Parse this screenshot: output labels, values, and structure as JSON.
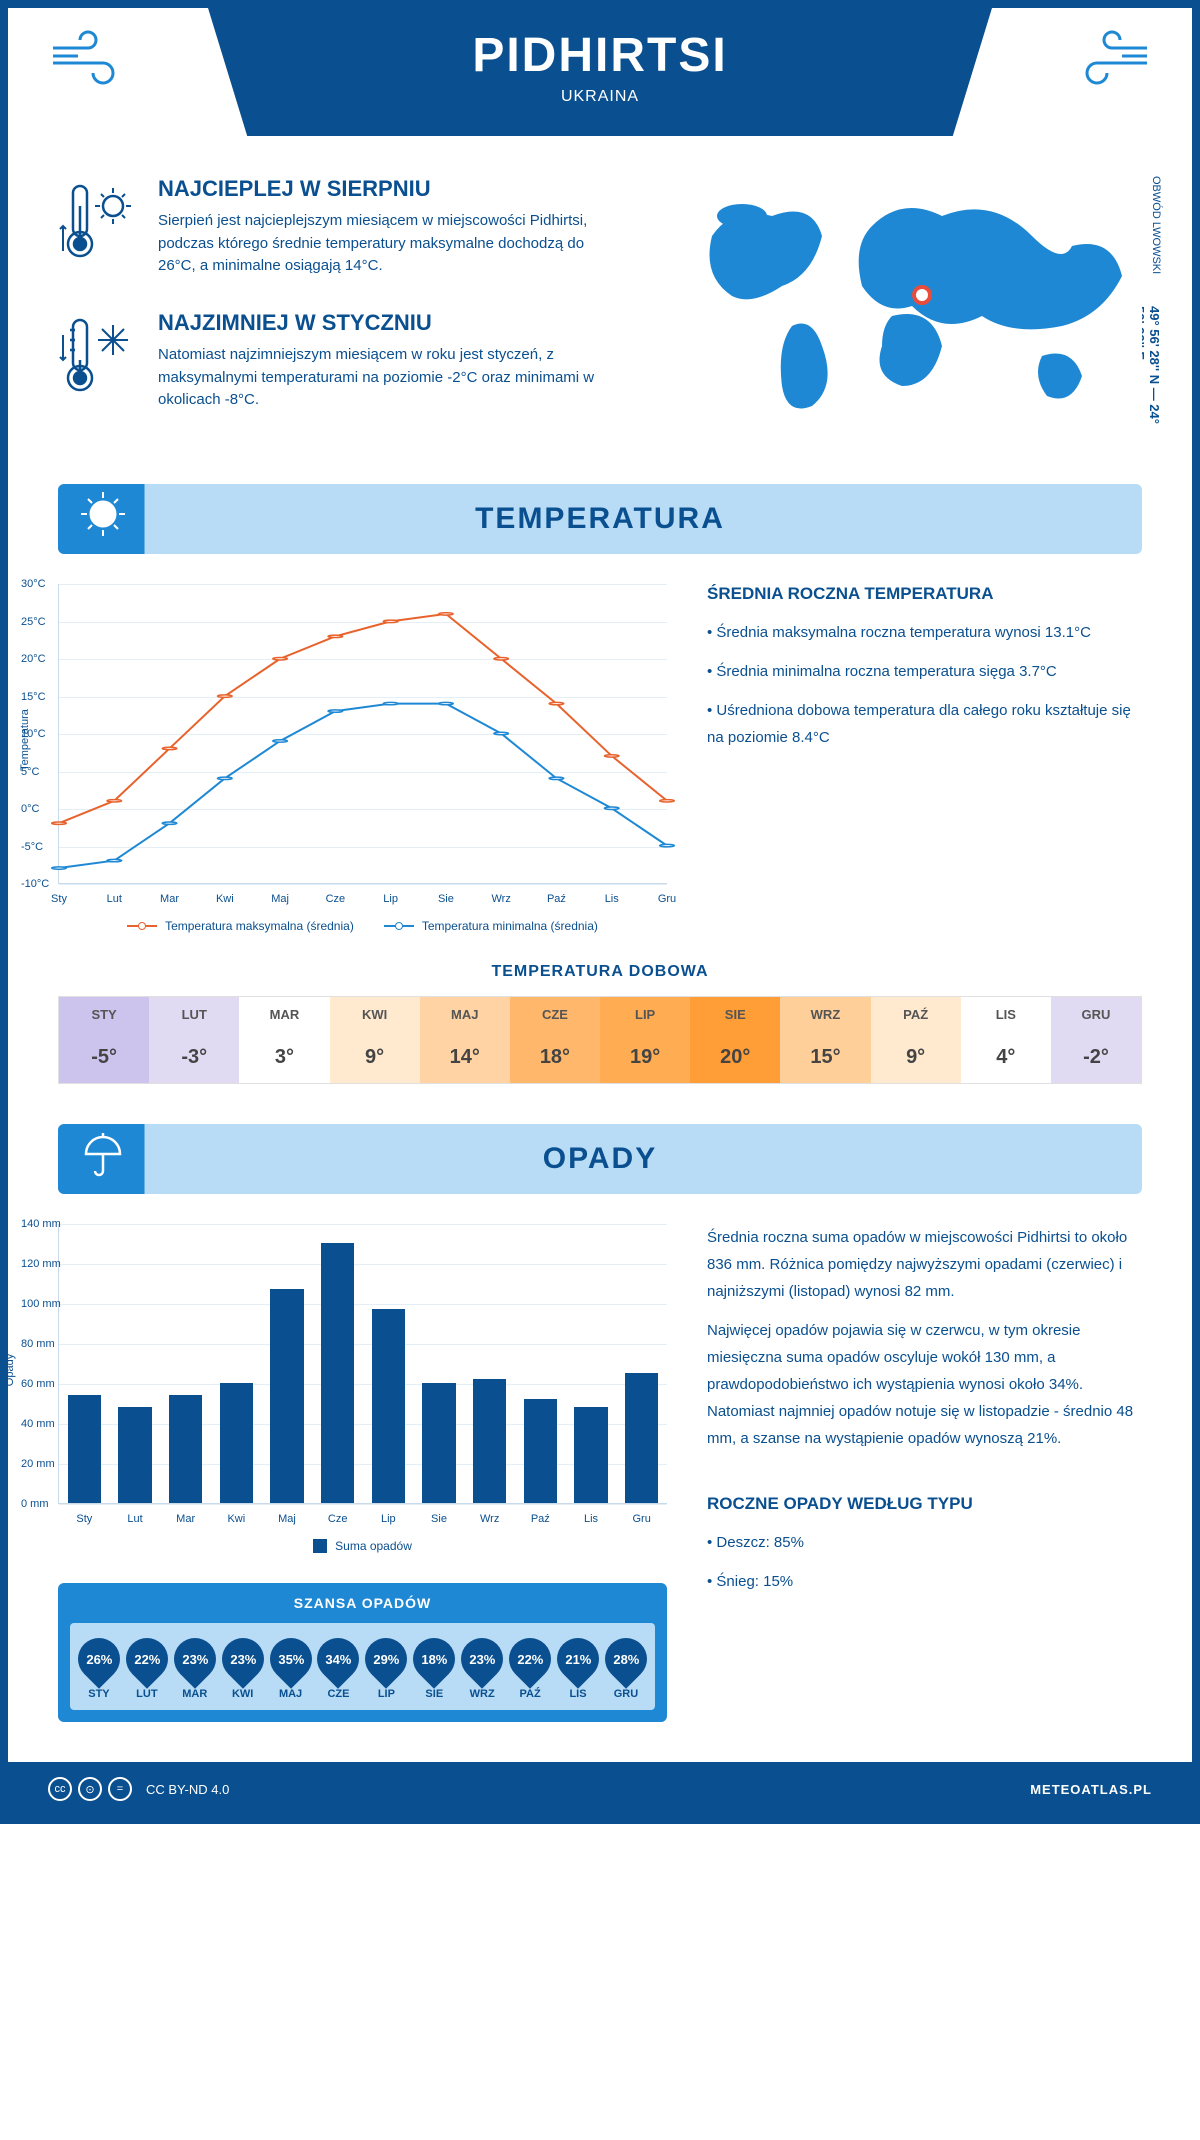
{
  "header": {
    "title": "PIDHIRTSI",
    "subtitle": "UKRAINA"
  },
  "location": {
    "coords": "49° 56' 28'' N — 24° 59' 22'' E",
    "region": "OBWÓD LWOWSKI"
  },
  "warmest": {
    "title": "NAJCIEPLEJ W SIERPNIU",
    "text": "Sierpień jest najcieplejszym miesiącem w miejscowości Pidhirtsi, podczas którego średnie temperatury maksymalne dochodzą do 26°C, a minimalne osiągają 14°C."
  },
  "coldest": {
    "title": "NAJZIMNIEJ W STYCZNIU",
    "text": "Natomiast najzimniejszym miesiącem w roku jest styczeń, z maksymalnymi temperaturami na poziomie -2°C oraz minimami w okolicach -8°C."
  },
  "temp_section": {
    "header": "TEMPERATURA",
    "chart": {
      "type": "line",
      "months": [
        "Sty",
        "Lut",
        "Mar",
        "Kwi",
        "Maj",
        "Cze",
        "Lip",
        "Sie",
        "Wrz",
        "Paź",
        "Lis",
        "Gru"
      ],
      "y_min": -10,
      "y_max": 30,
      "y_step": 5,
      "y_axis_title": "Temperatura",
      "series": [
        {
          "name": "Temperatura maksymalna (średnia)",
          "color": "#e8622c",
          "values": [
            -2,
            1,
            8,
            15,
            20,
            23,
            25,
            26,
            20,
            14,
            7,
            1
          ]
        },
        {
          "name": "Temperatura minimalna (średnia)",
          "color": "#1e88d4",
          "values": [
            -8,
            -7,
            -2,
            4,
            9,
            13,
            14,
            14,
            10,
            4,
            0,
            -5
          ]
        }
      ],
      "grid_color": "#e4eef7",
      "background": "#ffffff"
    },
    "summary": {
      "title": "ŚREDNIA ROCZNA TEMPERATURA",
      "lines": [
        "• Średnia maksymalna roczna temperatura wynosi 13.1°C",
        "• Średnia minimalna roczna temperatura sięga 3.7°C",
        "• Uśredniona dobowa temperatura dla całego roku kształtuje się na poziomie 8.4°C"
      ]
    },
    "daily": {
      "title": "TEMPERATURA DOBOWA",
      "months": [
        "STY",
        "LUT",
        "MAR",
        "KWI",
        "MAJ",
        "CZE",
        "LIP",
        "SIE",
        "WRZ",
        "PAŹ",
        "LIS",
        "GRU"
      ],
      "values": [
        "-5°",
        "-3°",
        "3°",
        "9°",
        "14°",
        "18°",
        "19°",
        "20°",
        "15°",
        "9°",
        "4°",
        "-2°"
      ],
      "colors": [
        "#ccc4ec",
        "#e0dbf2",
        "#fff",
        "#ffe9cf",
        "#ffd3a3",
        "#ffb86b",
        "#ffac52",
        "#ff9d36",
        "#ffcf99",
        "#ffe9cf",
        "#fff",
        "#e0dbf2"
      ]
    }
  },
  "precip_section": {
    "header": "OPADY",
    "chart": {
      "type": "bar",
      "months": [
        "Sty",
        "Lut",
        "Mar",
        "Kwi",
        "Maj",
        "Cze",
        "Lip",
        "Sie",
        "Wrz",
        "Paź",
        "Lis",
        "Gru"
      ],
      "values": [
        54,
        48,
        54,
        60,
        107,
        130,
        97,
        60,
        62,
        52,
        48,
        65
      ],
      "y_min": 0,
      "y_max": 140,
      "y_step": 20,
      "y_axis_title": "Opady",
      "bar_color": "#0a4f8f",
      "legend": "Suma opadów"
    },
    "text1": "Średnia roczna suma opadów w miejscowości Pidhirtsi to około 836 mm. Różnica pomiędzy najwyższymi opadami (czerwiec) i najniższymi (listopad) wynosi 82 mm.",
    "text2": "Najwięcej opadów pojawia się w czerwcu, w tym okresie miesięczna suma opadów oscyluje wokół 130 mm, a prawdopodobieństwo ich wystąpienia wynosi około 34%. Natomiast najmniej opadów notuje się w listopadzie - średnio 48 mm, a szanse na wystąpienie opadów wynoszą 21%.",
    "chance": {
      "title": "SZANSA OPADÓW",
      "months": [
        "STY",
        "LUT",
        "MAR",
        "KWI",
        "MAJ",
        "CZE",
        "LIP",
        "SIE",
        "WRZ",
        "PAŹ",
        "LIS",
        "GRU"
      ],
      "values": [
        "26%",
        "22%",
        "23%",
        "23%",
        "35%",
        "34%",
        "29%",
        "18%",
        "23%",
        "22%",
        "21%",
        "28%"
      ]
    },
    "by_type": {
      "title": "ROCZNE OPADY WEDŁUG TYPU",
      "lines": [
        "• Deszcz: 85%",
        "• Śnieg: 15%"
      ]
    }
  },
  "footer": {
    "license": "CC BY-ND 4.0",
    "site": "METEOATLAS.PL"
  }
}
